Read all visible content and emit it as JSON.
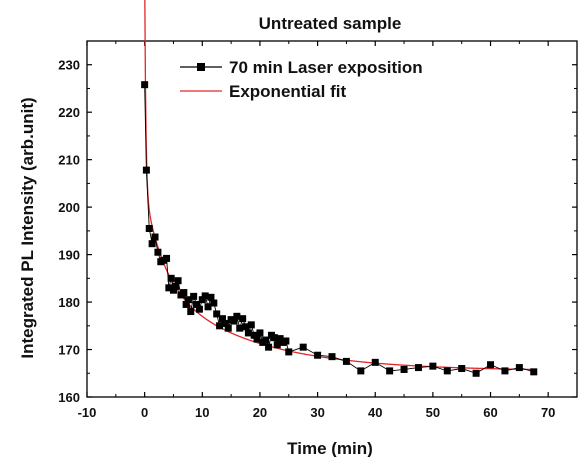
{
  "chart_data": {
    "type": "scatter",
    "title": "Untreated sample",
    "xlabel": "Time (min)",
    "ylabel": "Integrated PL Intensity (arb.unit)",
    "xlim": [
      -10,
      75
    ],
    "ylim": [
      160,
      235
    ],
    "xticks": [
      -10,
      0,
      10,
      20,
      30,
      40,
      50,
      60,
      70
    ],
    "yticks": [
      160,
      170,
      180,
      190,
      200,
      210,
      220,
      230
    ],
    "legend_position": "top-right",
    "grid": false,
    "series": [
      {
        "name": "70 min Laser exposition",
        "style": "line+square-markers",
        "color": "#000000",
        "x": [
          0.0,
          0.3,
          0.8,
          1.3,
          1.8,
          2.3,
          2.8,
          3.3,
          3.8,
          4.2,
          4.6,
          5.0,
          5.4,
          5.8,
          6.3,
          6.8,
          7.2,
          7.6,
          8.0,
          8.5,
          9.0,
          9.5,
          10.0,
          10.5,
          11.0,
          11.5,
          12.0,
          12.5,
          13.0,
          13.5,
          14.0,
          14.5,
          15.0,
          15.5,
          16.0,
          16.5,
          17.0,
          17.5,
          18.0,
          18.5,
          19.0,
          19.5,
          20.0,
          20.5,
          21.0,
          21.5,
          22.0,
          22.5,
          23.0,
          23.5,
          24.0,
          24.5,
          25.0,
          27.5,
          30.0,
          32.5,
          35.0,
          37.5,
          40.0,
          42.5,
          45.0,
          47.5,
          50.0,
          52.5,
          55.0,
          57.5,
          60.0,
          62.5,
          65.0,
          67.5
        ],
        "y": [
          225.8,
          207.8,
          195.5,
          192.3,
          193.7,
          190.5,
          188.5,
          188.8,
          189.2,
          183.0,
          185.0,
          182.5,
          183.3,
          184.5,
          181.5,
          182.0,
          179.5,
          180.5,
          178.0,
          181.2,
          179.5,
          178.5,
          180.5,
          181.3,
          179.0,
          181.0,
          179.8,
          177.5,
          175.0,
          176.5,
          175.5,
          174.5,
          176.3,
          176.0,
          177.0,
          174.5,
          176.5,
          174.8,
          173.5,
          175.2,
          173.0,
          172.2,
          173.5,
          171.5,
          172.0,
          170.5,
          173.0,
          172.5,
          171.0,
          172.3,
          171.5,
          171.8,
          169.5,
          170.5,
          168.8,
          168.5,
          167.5,
          165.5,
          167.3,
          165.5,
          165.8,
          166.2,
          166.5,
          165.5,
          166.0,
          165.0,
          166.8,
          165.5,
          166.2,
          165.3
        ]
      },
      {
        "name": "Exponential fit",
        "style": "line",
        "color": "#e32626",
        "fit": {
          "y0": 165.5,
          "a1": 46.0,
          "t1": 0.2,
          "a2": 18.0,
          "t2": 3.2,
          "a3": 20.0,
          "t3": 16.0,
          "x_range": [
            0,
            67.5
          ]
        }
      }
    ]
  }
}
